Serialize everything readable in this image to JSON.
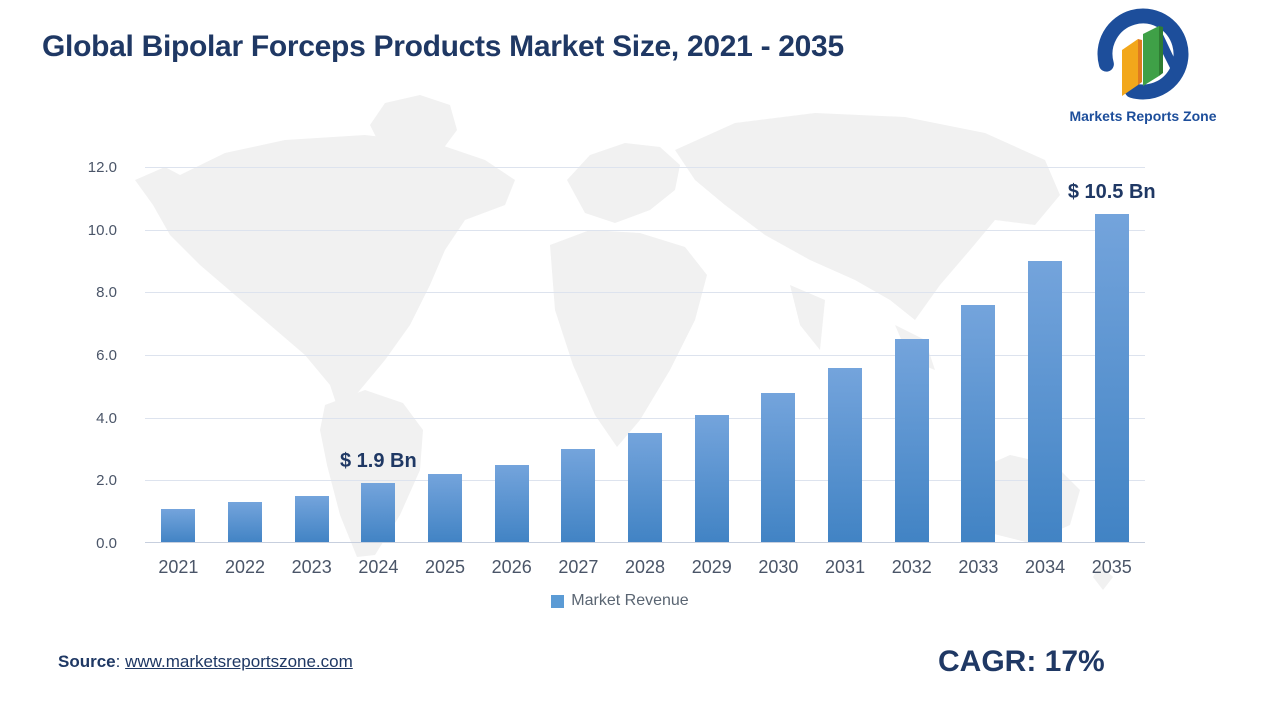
{
  "header": {
    "title": "Global Bipolar Forceps Products Market Size, 2021 - 2035"
  },
  "logo": {
    "text": "Markets Reports Zone"
  },
  "chart_data": {
    "type": "bar",
    "title": "Global Bipolar Forceps Products Market Size, 2021 - 2035",
    "categories": [
      "2021",
      "2022",
      "2023",
      "2024",
      "2025",
      "2026",
      "2027",
      "2028",
      "2029",
      "2030",
      "2031",
      "2032",
      "2033",
      "2034",
      "2035"
    ],
    "series": [
      {
        "name": "Market Revenue",
        "values": [
          1.1,
          1.3,
          1.5,
          1.9,
          2.2,
          2.5,
          3.0,
          3.5,
          4.1,
          4.8,
          5.6,
          6.5,
          7.6,
          9.0,
          10.5
        ]
      }
    ],
    "xlabel": "",
    "ylabel": "",
    "ylim": [
      0,
      12
    ],
    "ytick_step": 2,
    "ytick_decimals": 1,
    "grid": true,
    "legend_position": "bottom",
    "annotations": [
      {
        "category": "2024",
        "text": "$ 1.9 Bn"
      },
      {
        "category": "2035",
        "text": "$ 10.5 Bn"
      }
    ]
  },
  "legend": {
    "label": "Market Revenue"
  },
  "footer": {
    "source_label": "Source",
    "source_separator": ": ",
    "source_url": "www.marketsreportszone.com",
    "cagr": "CAGR: 17%"
  },
  "colors": {
    "title_navy": "#1F3864",
    "bar_gradient_top": "#74A4DC",
    "bar_gradient_bottom": "#4183C4",
    "legend_swatch": "#5B9BD5",
    "gridline": "#DDE3EE",
    "axis_line": "#C7CFDE",
    "tick_label": "#4A5568",
    "legend_text": "#5A6572",
    "map_fill": "#F1F1F1",
    "logo_blue": "#1D4E9B",
    "logo_orange": "#F2A71B",
    "logo_orange_dark": "#E07B1F",
    "logo_green": "#3FA047",
    "logo_green_dark": "#2F7D33"
  }
}
